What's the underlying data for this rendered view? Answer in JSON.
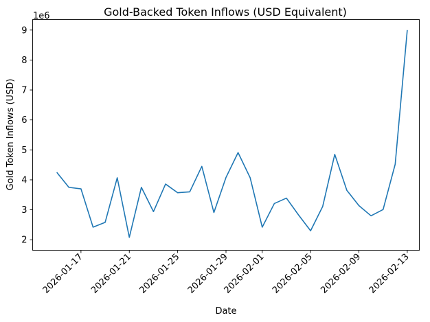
{
  "chart_data": {
    "type": "line",
    "title": "Gold-Backed Token Inflows (USD Equivalent)",
    "xlabel": "Date",
    "ylabel": "Gold Token Inflows (USD)",
    "y_offset_label": "1e6",
    "ylim": [
      1.65,
      9.35
    ],
    "yticks": [
      2,
      3,
      4,
      5,
      6,
      7,
      8,
      9
    ],
    "xticks": [
      "2026-01-17",
      "2026-01-21",
      "2026-01-25",
      "2026-01-29",
      "2026-02-01",
      "2026-02-05",
      "2026-02-09",
      "2026-02-13"
    ],
    "x_range": [
      "2026-01-13",
      "2026-02-14"
    ],
    "grid": false,
    "color": "#1f77b4",
    "series": [
      {
        "x": [
          "2026-01-15",
          "2026-01-16",
          "2026-01-17",
          "2026-01-18",
          "2026-01-19",
          "2026-01-20",
          "2026-01-21",
          "2026-01-22",
          "2026-01-23",
          "2026-01-24",
          "2026-01-25",
          "2026-01-26",
          "2026-01-27",
          "2026-01-28",
          "2026-01-29",
          "2026-01-30",
          "2026-01-31",
          "2026-02-01",
          "2026-02-02",
          "2026-02-03",
          "2026-02-04",
          "2026-02-05",
          "2026-02-06",
          "2026-02-07",
          "2026-02-08",
          "2026-02-09",
          "2026-02-10",
          "2026-02-11",
          "2026-02-12",
          "2026-02-13"
        ],
        "values": [
          4.25,
          3.75,
          3.7,
          2.42,
          2.58,
          4.07,
          2.08,
          3.75,
          2.94,
          3.86,
          3.57,
          3.6,
          4.45,
          2.91,
          4.08,
          4.91,
          4.07,
          2.42,
          3.21,
          3.39,
          2.83,
          2.3,
          3.11,
          4.85,
          3.65,
          3.14,
          2.8,
          3.01,
          4.52,
          9.0
        ]
      }
    ]
  }
}
